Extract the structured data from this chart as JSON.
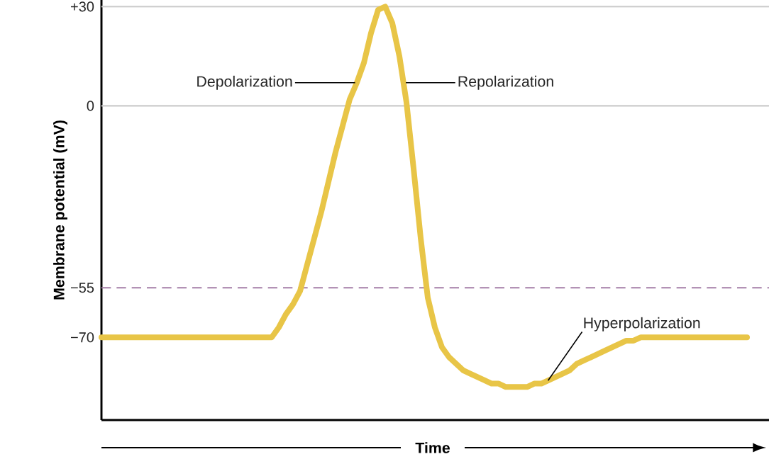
{
  "chart_data": {
    "type": "line",
    "ylabel": "Membrane potential (mV)",
    "xlabel": "Time",
    "categories": [
      null,
      null,
      null,
      null,
      null,
      null,
      null,
      null,
      null,
      null,
      null,
      null,
      null,
      null,
      null,
      null,
      null,
      null,
      null,
      null,
      null,
      null,
      null,
      null,
      null,
      null,
      null,
      null,
      null,
      null,
      null,
      null,
      null,
      null,
      null,
      null,
      null,
      null,
      null,
      null,
      null,
      null,
      null,
      null,
      null,
      null,
      null,
      null,
      null,
      null,
      null,
      null,
      null,
      null,
      null,
      null,
      null,
      null,
      null,
      null,
      null,
      null,
      null,
      null,
      null,
      null,
      null,
      null,
      null,
      null,
      null,
      null,
      null,
      null,
      null,
      null,
      null,
      null,
      null,
      null,
      null,
      null,
      null,
      null,
      null,
      null,
      null,
      null,
      null,
      null,
      null,
      null
    ],
    "series": [
      {
        "color": "#e8c547",
        "values": [
          -70,
          -70,
          -70,
          -70,
          -70,
          -70,
          -70,
          -70,
          -70,
          -70,
          -70,
          -70,
          -70,
          -70,
          -70,
          -70,
          -70,
          -70,
          -70,
          -70,
          -70,
          -70,
          -70,
          -70,
          -70,
          -67,
          -63,
          -60,
          -56,
          -48,
          -40,
          -32,
          -23,
          -14,
          -6,
          2,
          7,
          13,
          22,
          29,
          30,
          25,
          15,
          1,
          -19,
          -40,
          -58,
          -67,
          -73,
          -76,
          -78,
          -80,
          -81,
          -82,
          -83,
          -84,
          -84,
          -85,
          -85,
          -85,
          -85,
          -84,
          -84,
          -83,
          -82,
          -81,
          -80,
          -78,
          -77,
          -76,
          -75,
          -74,
          -73,
          -72,
          -71,
          -71,
          -70,
          -70,
          -70,
          -70,
          -70,
          -70,
          -70,
          -70,
          -70,
          -70,
          -70,
          -70,
          -70,
          -70,
          -70,
          -70
        ]
      }
    ],
    "ylim": [
      -95,
      32
    ],
    "yticks": [
      {
        "value": 30,
        "label": "+30"
      },
      0,
      {
        "value": -55,
        "label": "−55"
      },
      {
        "value": -70,
        "label": "−70"
      }
    ],
    "ref_lines": [
      {
        "axis": "y",
        "value": 30,
        "color": "#cccccc"
      },
      {
        "axis": "y",
        "value": 0,
        "color": "#cccccc"
      },
      {
        "axis": "y",
        "value": -55,
        "color": "#a57fa8",
        "line_style": "dashed"
      }
    ],
    "annotations": [
      "Depolarization",
      "Repolarization",
      "Hyperpolarization"
    ]
  }
}
